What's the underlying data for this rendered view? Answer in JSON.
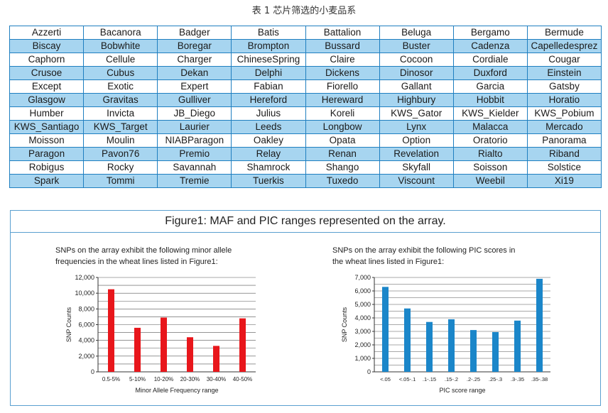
{
  "caption": "表 1 芯片筛选的小麦品系",
  "varieties": [
    [
      "Azzerti",
      "Bacanora",
      "Badger",
      "Batis",
      "Battalion",
      "Beluga",
      "Bergamo",
      "Bermude"
    ],
    [
      "Biscay",
      "Bobwhite",
      "Boregar",
      "Brompton",
      "Bussard",
      "Buster",
      "Cadenza",
      "Capelledesprez"
    ],
    [
      "Caphorn",
      "Cellule",
      "Charger",
      "ChineseSpring",
      "Claire",
      "Cocoon",
      "Cordiale",
      "Cougar"
    ],
    [
      "Crusoe",
      "Cubus",
      "Dekan",
      "Delphi",
      "Dickens",
      "Dinosor",
      "Duxford",
      "Einstein"
    ],
    [
      "Except",
      "Exotic",
      "Expert",
      "Fabian",
      "Fiorello",
      "Gallant",
      "Garcia",
      "Gatsby"
    ],
    [
      "Glasgow",
      "Gravitas",
      "Gulliver",
      "Hereford",
      "Hereward",
      "Highbury",
      "Hobbit",
      "Horatio"
    ],
    [
      "Humber",
      "Invicta",
      "JB_Diego",
      "Julius",
      "Koreli",
      "KWS_Gator",
      "KWS_Kielder",
      "KWS_Pobium"
    ],
    [
      "KWS_Santiago",
      "KWS_Target",
      "Laurier",
      "Leeds",
      "Longbow",
      "Lynx",
      "Malacca",
      "Mercado"
    ],
    [
      "Moisson",
      "Moulin",
      "NIABParagon",
      "Oakley",
      "Opata",
      "Option",
      "Oratorio",
      "Panorama"
    ],
    [
      "Paragon",
      "Pavon76",
      "Premio",
      "Relay",
      "Renan",
      "Revelation",
      "Rialto",
      "Riband"
    ],
    [
      "Robigus",
      "Rocky",
      "Savannah",
      "Shamrock",
      "Shango",
      "Skyfall",
      "Soisson",
      "Solstice"
    ],
    [
      "Spark",
      "Tommi",
      "Tremie",
      "Tuerkis",
      "Tuxedo",
      "Viscount",
      "Weebil",
      "Xi19"
    ]
  ],
  "colors": {
    "table_border": "#1f7fc0",
    "row_alt": "#a7d5f0",
    "maf_bar": "#e8161b",
    "pic_bar": "#1b86c9"
  },
  "figure": {
    "title": "Figure1: MAF and PIC ranges represented on the array.",
    "maf": {
      "desc_line1": "SNPs on the array exhibit the following minor allele",
      "desc_line2": "frequencies in the wheat lines listed in Figure1:"
    },
    "pic": {
      "desc_line1": "SNPs on the array exhibit the following PIC scores in",
      "desc_line2": "the wheat lines listed in Figure1:"
    }
  },
  "chart_data": [
    {
      "type": "bar",
      "categories": [
        "0.5-5%",
        "5-10%",
        "10-20%",
        "20-30%",
        "30-40%",
        "40-50%"
      ],
      "values": [
        10500,
        5600,
        6900,
        4400,
        3300,
        6800
      ],
      "title": "",
      "xlabel": "Minor Allele Frequency range",
      "ylabel": "SNP Counts",
      "ylim": [
        0,
        12000
      ],
      "yticks": [
        "0",
        "2,000",
        "4,000",
        "6,000",
        "8,000",
        "10,000",
        "12,000"
      ],
      "grid": true
    },
    {
      "type": "bar",
      "categories": [
        "<.05",
        "<.05-.1",
        ".1-.15",
        ".15-.2",
        ".2-.25",
        ".25-.3",
        ".3-.35",
        ".35-.38"
      ],
      "values": [
        6300,
        4700,
        3700,
        3900,
        3100,
        2950,
        3800,
        6900
      ],
      "title": "",
      "xlabel": "PIC score range",
      "ylabel": "SNP Counts",
      "ylim": [
        0,
        7000
      ],
      "yticks": [
        "0",
        "1,000",
        "2,000",
        "3,000",
        "4,000",
        "5,000",
        "6,000",
        "7,000"
      ],
      "grid": true
    }
  ]
}
